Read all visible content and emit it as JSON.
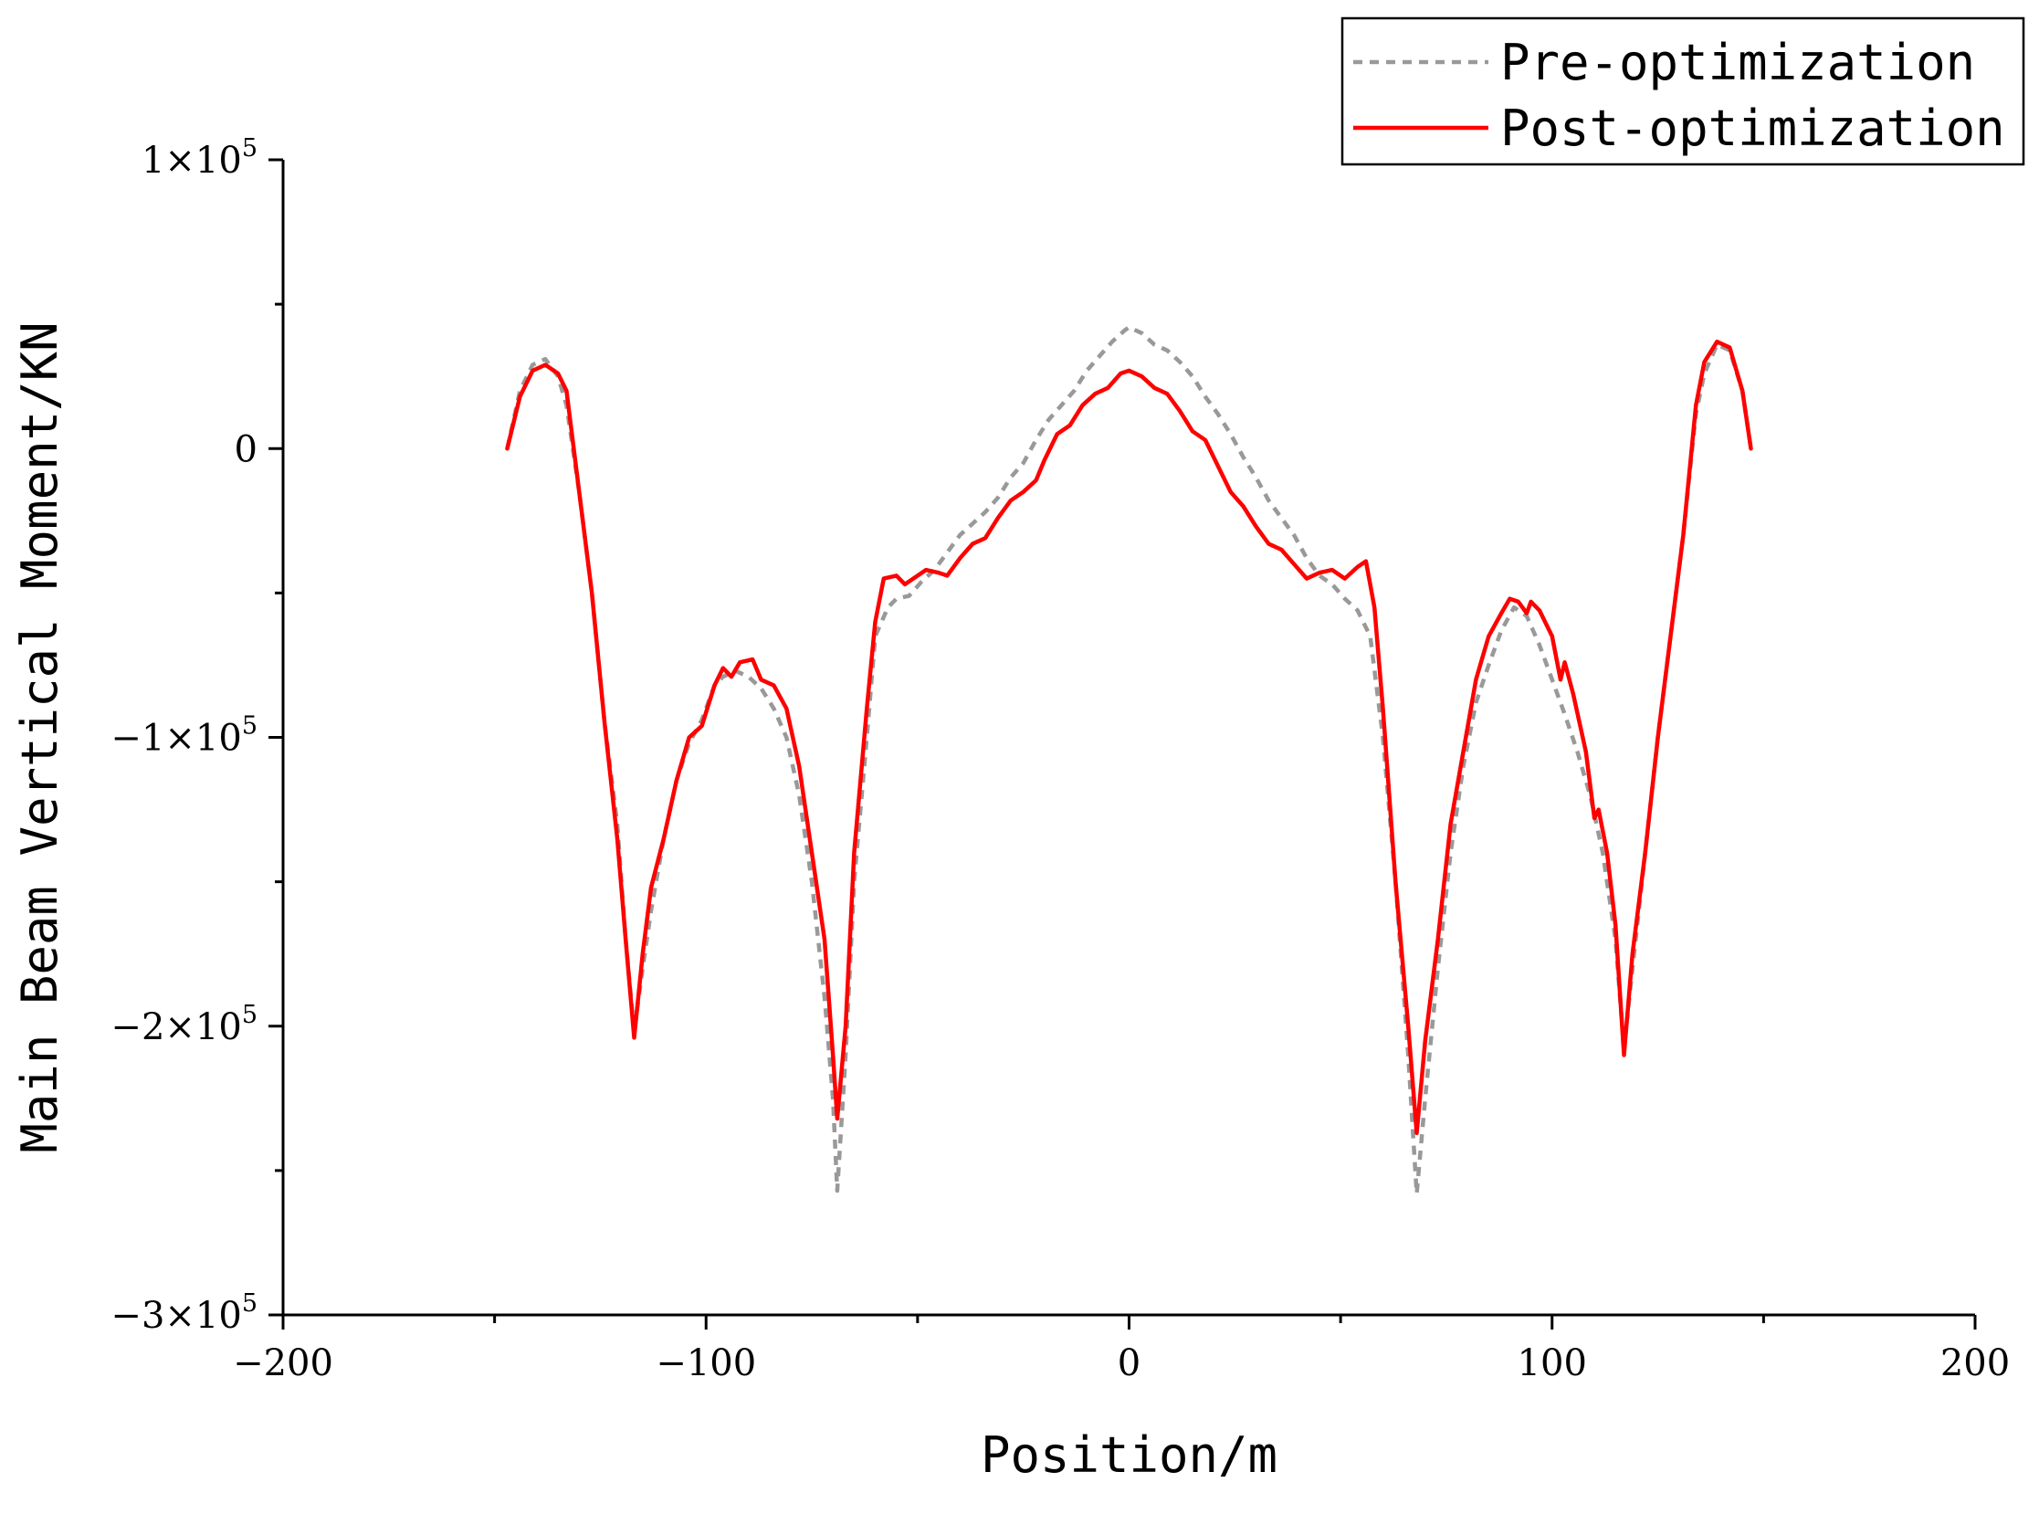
{
  "chart_data": {
    "type": "line",
    "title": "",
    "xlabel": "Position/m",
    "ylabel": "Main Beam Vertical Moment/KN",
    "xlim": [
      -200,
      200
    ],
    "ylim": [
      -300000,
      100000
    ],
    "x_ticks": [
      -200,
      -100,
      0,
      100,
      200
    ],
    "x_tick_labels": [
      "−200",
      "−100",
      "0",
      "100",
      "200"
    ],
    "y_ticks": [
      100000,
      0,
      -100000,
      -200000,
      -300000
    ],
    "y_tick_labels": [
      {
        "mant": "1×10",
        "exp": "5"
      },
      {
        "mant": "0",
        "exp": ""
      },
      {
        "mant": "−1×10",
        "exp": "5"
      },
      {
        "mant": "−2×10",
        "exp": "5"
      },
      {
        "mant": "−3×10",
        "exp": "5"
      }
    ],
    "grid": false,
    "legend": "top-right",
    "series": [
      {
        "name": "Pre-optimization",
        "color": "#999999",
        "style": "dashed",
        "points": [
          [
            -147,
            0
          ],
          [
            -144,
            20000
          ],
          [
            -141,
            29000
          ],
          [
            -138,
            31000
          ],
          [
            -135,
            25000
          ],
          [
            -133,
            15000
          ],
          [
            -130,
            -15000
          ],
          [
            -127,
            -50000
          ],
          [
            -124,
            -95000
          ],
          [
            -121,
            -130000
          ],
          [
            -119,
            -170000
          ],
          [
            -117,
            -202000
          ],
          [
            -115,
            -180000
          ],
          [
            -113,
            -160000
          ],
          [
            -110,
            -135000
          ],
          [
            -107,
            -115000
          ],
          [
            -104,
            -102000
          ],
          [
            -101,
            -94000
          ],
          [
            -98,
            -82000
          ],
          [
            -96,
            -79000
          ],
          [
            -93,
            -77000
          ],
          [
            -90,
            -79000
          ],
          [
            -87,
            -83000
          ],
          [
            -84,
            -90000
          ],
          [
            -81,
            -100000
          ],
          [
            -78,
            -120000
          ],
          [
            -75,
            -150000
          ],
          [
            -72,
            -190000
          ],
          [
            -70,
            -225000
          ],
          [
            -69,
            -257000
          ],
          [
            -67,
            -210000
          ],
          [
            -65,
            -150000
          ],
          [
            -62,
            -100000
          ],
          [
            -60,
            -65000
          ],
          [
            -57,
            -55000
          ],
          [
            -55,
            -52000
          ],
          [
            -52,
            -51000
          ],
          [
            -49,
            -46000
          ],
          [
            -46,
            -42000
          ],
          [
            -43,
            -36000
          ],
          [
            -40,
            -30000
          ],
          [
            -37,
            -26000
          ],
          [
            -34,
            -22000
          ],
          [
            -31,
            -17000
          ],
          [
            -28,
            -10000
          ],
          [
            -25,
            -5000
          ],
          [
            -22,
            3000
          ],
          [
            -19,
            10000
          ],
          [
            -16,
            15000
          ],
          [
            -13,
            20000
          ],
          [
            -10,
            27000
          ],
          [
            -7,
            32000
          ],
          [
            -4,
            37000
          ],
          [
            -1,
            41000
          ],
          [
            0,
            42000
          ],
          [
            3,
            40000
          ],
          [
            6,
            36000
          ],
          [
            9,
            34000
          ],
          [
            12,
            30000
          ],
          [
            15,
            25000
          ],
          [
            18,
            18000
          ],
          [
            21,
            12000
          ],
          [
            24,
            5000
          ],
          [
            27,
            -3000
          ],
          [
            30,
            -10000
          ],
          [
            33,
            -18000
          ],
          [
            36,
            -24000
          ],
          [
            39,
            -30000
          ],
          [
            42,
            -38000
          ],
          [
            45,
            -44000
          ],
          [
            48,
            -47000
          ],
          [
            51,
            -52000
          ],
          [
            54,
            -56000
          ],
          [
            57,
            -65000
          ],
          [
            60,
            -100000
          ],
          [
            63,
            -150000
          ],
          [
            66,
            -210000
          ],
          [
            68,
            -258000
          ],
          [
            70,
            -225000
          ],
          [
            73,
            -180000
          ],
          [
            76,
            -140000
          ],
          [
            79,
            -110000
          ],
          [
            82,
            -88000
          ],
          [
            85,
            -75000
          ],
          [
            88,
            -63000
          ],
          [
            91,
            -55000
          ],
          [
            94,
            -58000
          ],
          [
            97,
            -68000
          ],
          [
            100,
            -80000
          ],
          [
            103,
            -92000
          ],
          [
            106,
            -105000
          ],
          [
            109,
            -120000
          ],
          [
            112,
            -140000
          ],
          [
            115,
            -170000
          ],
          [
            117,
            -208000
          ],
          [
            119,
            -180000
          ],
          [
            122,
            -140000
          ],
          [
            125,
            -100000
          ],
          [
            128,
            -65000
          ],
          [
            131,
            -30000
          ],
          [
            134,
            12000
          ],
          [
            136,
            26000
          ],
          [
            139,
            36000
          ],
          [
            142,
            34000
          ],
          [
            145,
            20000
          ],
          [
            147,
            0
          ]
        ]
      },
      {
        "name": "Post-optimization",
        "color": "#ff0000",
        "style": "solid",
        "points": [
          [
            -147,
            0
          ],
          [
            -144,
            18000
          ],
          [
            -141,
            27000
          ],
          [
            -138,
            29000
          ],
          [
            -135,
            26000
          ],
          [
            -133,
            20000
          ],
          [
            -130,
            -15000
          ],
          [
            -127,
            -50000
          ],
          [
            -124,
            -95000
          ],
          [
            -121,
            -135000
          ],
          [
            -119,
            -170000
          ],
          [
            -117,
            -204000
          ],
          [
            -115,
            -175000
          ],
          [
            -113,
            -152000
          ],
          [
            -110,
            -135000
          ],
          [
            -107,
            -115000
          ],
          [
            -104,
            -100000
          ],
          [
            -101,
            -96000
          ],
          [
            -98,
            -82000
          ],
          [
            -96,
            -76000
          ],
          [
            -94,
            -79000
          ],
          [
            -92,
            -74000
          ],
          [
            -89,
            -73000
          ],
          [
            -87,
            -80000
          ],
          [
            -84,
            -82000
          ],
          [
            -81,
            -90000
          ],
          [
            -78,
            -110000
          ],
          [
            -75,
            -140000
          ],
          [
            -72,
            -170000
          ],
          [
            -70,
            -210000
          ],
          [
            -69,
            -232000
          ],
          [
            -67,
            -200000
          ],
          [
            -65,
            -140000
          ],
          [
            -62,
            -90000
          ],
          [
            -60,
            -60000
          ],
          [
            -58,
            -45000
          ],
          [
            -55,
            -44000
          ],
          [
            -53,
            -47000
          ],
          [
            -51,
            -45000
          ],
          [
            -48,
            -42000
          ],
          [
            -45,
            -43000
          ],
          [
            -43,
            -44000
          ],
          [
            -40,
            -38000
          ],
          [
            -37,
            -33000
          ],
          [
            -34,
            -31000
          ],
          [
            -31,
            -24000
          ],
          [
            -28,
            -18000
          ],
          [
            -25,
            -15000
          ],
          [
            -22,
            -11000
          ],
          [
            -20,
            -4000
          ],
          [
            -17,
            5000
          ],
          [
            -14,
            8000
          ],
          [
            -11,
            15000
          ],
          [
            -8,
            19000
          ],
          [
            -5,
            21000
          ],
          [
            -2,
            26000
          ],
          [
            0,
            27000
          ],
          [
            3,
            25000
          ],
          [
            6,
            21000
          ],
          [
            9,
            19000
          ],
          [
            12,
            13000
          ],
          [
            15,
            6000
          ],
          [
            18,
            3000
          ],
          [
            21,
            -6000
          ],
          [
            24,
            -15000
          ],
          [
            27,
            -20000
          ],
          [
            30,
            -27000
          ],
          [
            33,
            -33000
          ],
          [
            36,
            -35000
          ],
          [
            39,
            -40000
          ],
          [
            42,
            -45000
          ],
          [
            45,
            -43000
          ],
          [
            48,
            -42000
          ],
          [
            51,
            -45000
          ],
          [
            54,
            -41000
          ],
          [
            56,
            -39000
          ],
          [
            58,
            -55000
          ],
          [
            60,
            -90000
          ],
          [
            63,
            -150000
          ],
          [
            66,
            -200000
          ],
          [
            68,
            -237000
          ],
          [
            70,
            -205000
          ],
          [
            73,
            -170000
          ],
          [
            76,
            -130000
          ],
          [
            79,
            -105000
          ],
          [
            82,
            -80000
          ],
          [
            85,
            -65000
          ],
          [
            88,
            -57000
          ],
          [
            90,
            -52000
          ],
          [
            92,
            -53000
          ],
          [
            94,
            -57000
          ],
          [
            95,
            -53000
          ],
          [
            97,
            -56000
          ],
          [
            100,
            -65000
          ],
          [
            102,
            -80000
          ],
          [
            103,
            -74000
          ],
          [
            105,
            -85000
          ],
          [
            108,
            -105000
          ],
          [
            110,
            -128000
          ],
          [
            111,
            -125000
          ],
          [
            113,
            -140000
          ],
          [
            115,
            -165000
          ],
          [
            117,
            -210000
          ],
          [
            119,
            -175000
          ],
          [
            122,
            -140000
          ],
          [
            125,
            -100000
          ],
          [
            128,
            -65000
          ],
          [
            131,
            -30000
          ],
          [
            134,
            15000
          ],
          [
            136,
            30000
          ],
          [
            139,
            37000
          ],
          [
            142,
            35000
          ],
          [
            145,
            20000
          ],
          [
            147,
            0
          ]
        ]
      }
    ]
  }
}
